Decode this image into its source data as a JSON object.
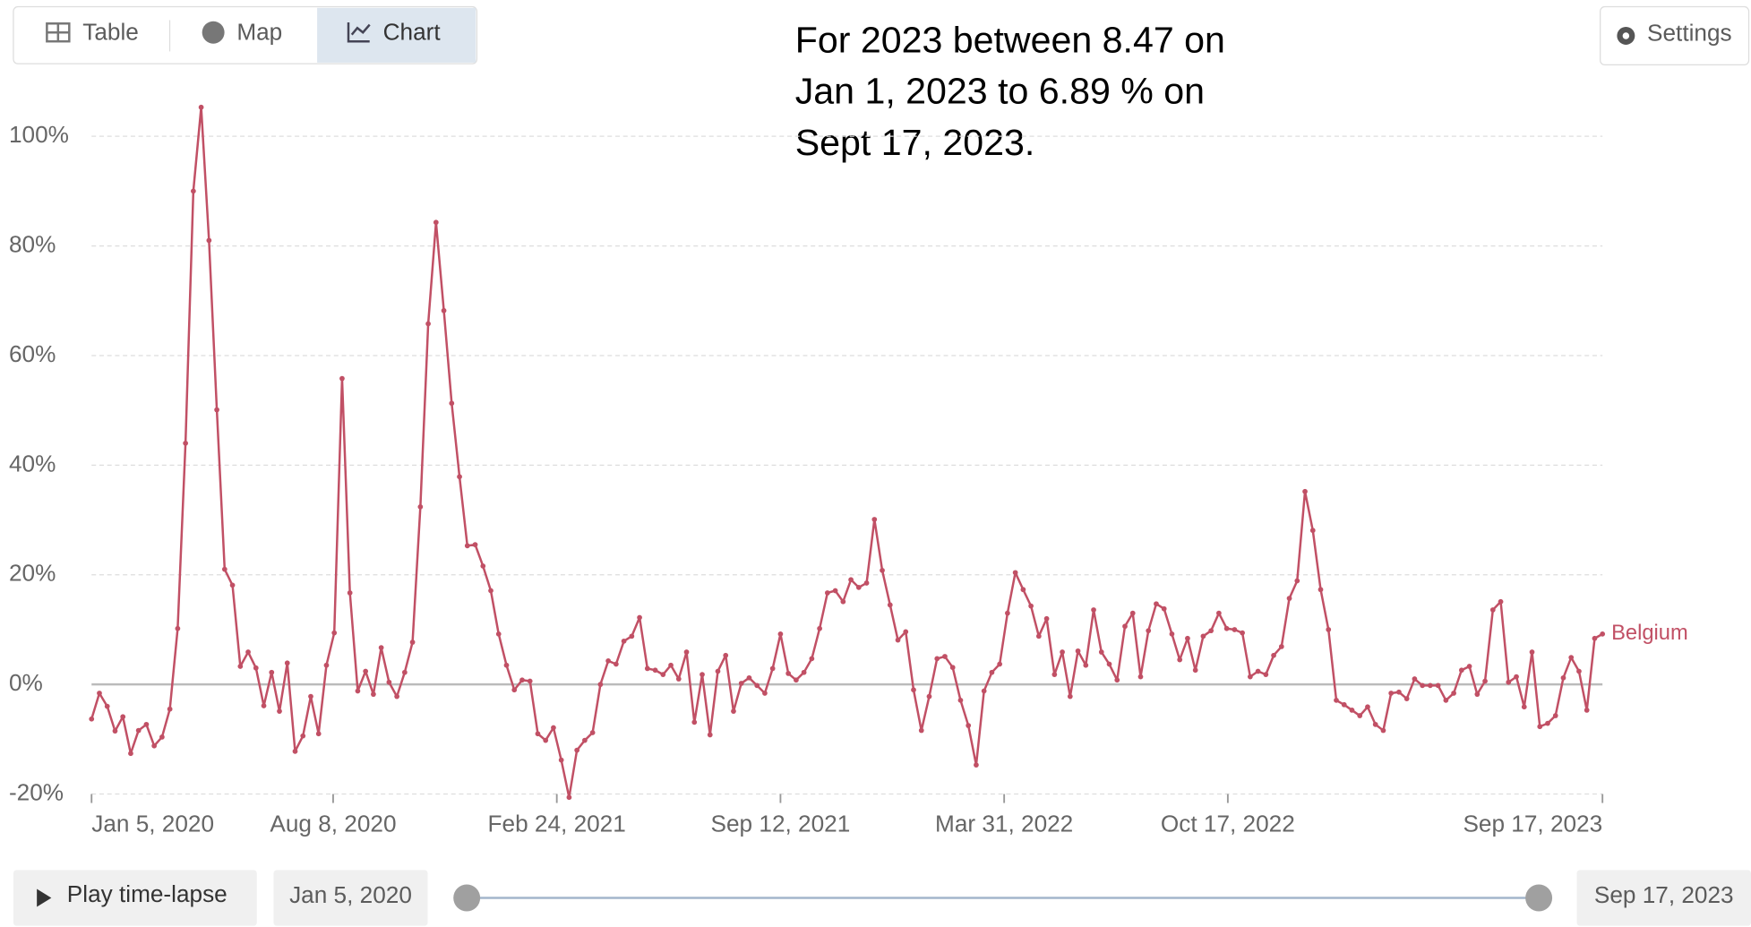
{
  "tabs": [
    "Table",
    "Map",
    "Chart"
  ],
  "active_tab": "Chart",
  "settings": "Settings",
  "annotation": [
    "For 2023 between 8.47 on",
    "Jan 1, 2023 to 6.89 % on",
    "Sept 17, 2023."
  ],
  "timeline": {
    "play": "Play time-lapse",
    "start": "Jan 5, 2020",
    "end": "Sep 17, 2023"
  },
  "chart_data": {
    "type": "line",
    "x": [
      "2020-01-05",
      "2020-01-12",
      "2020-01-19",
      "2020-01-26",
      "2020-02-02",
      "2020-02-09",
      "2020-02-16",
      "2020-02-23",
      "2020-03-01",
      "2020-03-08",
      "2020-03-15",
      "2020-03-22",
      "2020-03-29",
      "2020-04-05",
      "2020-04-12",
      "2020-04-19",
      "2020-04-26",
      "2020-05-03",
      "2020-05-10",
      "2020-05-17",
      "2020-05-24",
      "2020-05-31",
      "2020-06-07",
      "2020-06-14",
      "2020-06-21",
      "2020-06-28",
      "2020-07-05",
      "2020-07-12",
      "2020-07-19",
      "2020-07-26",
      "2020-08-02",
      "2020-08-09",
      "2020-08-16",
      "2020-08-23",
      "2020-08-30",
      "2020-09-06",
      "2020-09-13",
      "2020-09-20",
      "2020-09-27",
      "2020-10-04",
      "2020-10-11",
      "2020-10-18",
      "2020-10-25",
      "2020-11-01",
      "2020-11-08",
      "2020-11-15",
      "2020-11-22",
      "2020-11-29",
      "2020-12-06",
      "2020-12-13",
      "2020-12-20",
      "2020-12-27",
      "2021-01-03",
      "2021-01-10",
      "2021-01-17",
      "2021-01-24",
      "2021-01-31",
      "2021-02-07",
      "2021-02-14",
      "2021-02-21",
      "2021-02-28",
      "2021-03-07",
      "2021-03-14",
      "2021-03-21",
      "2021-03-28",
      "2021-04-04",
      "2021-04-11",
      "2021-04-18",
      "2021-04-25",
      "2021-05-02",
      "2021-05-09",
      "2021-05-16",
      "2021-05-23",
      "2021-05-30",
      "2021-06-06",
      "2021-06-13",
      "2021-06-20",
      "2021-06-27",
      "2021-07-04",
      "2021-07-11",
      "2021-07-18",
      "2021-07-25",
      "2021-08-01",
      "2021-08-08",
      "2021-08-15",
      "2021-08-22",
      "2021-08-29",
      "2021-09-05",
      "2021-09-12",
      "2021-09-19",
      "2021-09-26",
      "2021-10-03",
      "2021-10-10",
      "2021-10-17",
      "2021-10-24",
      "2021-10-31",
      "2021-11-07",
      "2021-11-14",
      "2021-11-21",
      "2021-11-28",
      "2021-12-05",
      "2021-12-12",
      "2021-12-19",
      "2021-12-26",
      "2022-01-02",
      "2022-01-09",
      "2022-01-16",
      "2022-01-23",
      "2022-01-30",
      "2022-02-06",
      "2022-02-13",
      "2022-02-20",
      "2022-02-27",
      "2022-03-06",
      "2022-03-13",
      "2022-03-20",
      "2022-03-27",
      "2022-04-03",
      "2022-04-10",
      "2022-04-17",
      "2022-04-24",
      "2022-05-01",
      "2022-05-08",
      "2022-05-15",
      "2022-05-22",
      "2022-05-29",
      "2022-06-05",
      "2022-06-12",
      "2022-06-19",
      "2022-06-26",
      "2022-07-03",
      "2022-07-10",
      "2022-07-17",
      "2022-07-24",
      "2022-07-31",
      "2022-08-07",
      "2022-08-14",
      "2022-08-21",
      "2022-08-28",
      "2022-09-04",
      "2022-09-11",
      "2022-09-18",
      "2022-09-25",
      "2022-10-02",
      "2022-10-09",
      "2022-10-16",
      "2022-10-23",
      "2022-10-30",
      "2022-11-06",
      "2022-11-13",
      "2022-11-20",
      "2022-11-27",
      "2022-12-04",
      "2022-12-11",
      "2022-12-18",
      "2022-12-25",
      "2023-01-01",
      "2023-01-08",
      "2023-01-15",
      "2023-01-22",
      "2023-01-29",
      "2023-02-05",
      "2023-02-12",
      "2023-02-19",
      "2023-02-26",
      "2023-03-05",
      "2023-03-12",
      "2023-03-19",
      "2023-03-26",
      "2023-04-02",
      "2023-04-09",
      "2023-04-16",
      "2023-04-23",
      "2023-04-30",
      "2023-05-07",
      "2023-05-14",
      "2023-05-21",
      "2023-05-28",
      "2023-06-04",
      "2023-06-11",
      "2023-06-18",
      "2023-06-25",
      "2023-07-02",
      "2023-07-09",
      "2023-07-16",
      "2023-07-23",
      "2023-07-30",
      "2023-08-06",
      "2023-08-13",
      "2023-08-20",
      "2023-08-27",
      "2023-09-03",
      "2023-09-10",
      "2023-09-17"
    ],
    "series": [
      {
        "name": "Belgium",
        "color": "#c15065",
        "values": [
          -6.3,
          -1.6,
          -4,
          -8.5,
          -5.9,
          -12.6,
          -8.4,
          -7.3,
          -11.2,
          -9.6,
          -4.5,
          10.2,
          44,
          90,
          105.3,
          81,
          50.1,
          21,
          18.1,
          3.3,
          5.9,
          3,
          -3.9,
          2.2,
          -4.9,
          3.9,
          -12.2,
          -9.4,
          -2.2,
          -9,
          3.5,
          9.4,
          55.8,
          16.7,
          -1.2,
          2.4,
          -1.8,
          6.7,
          0.4,
          -2.2,
          2.2,
          7.7,
          32.4,
          65.8,
          84.3,
          68.2,
          51.3,
          37.9,
          25.3,
          25.5,
          21.6,
          17.1,
          9.2,
          3.5,
          -1,
          0.8,
          0.6,
          -9,
          -10.2,
          -7.9,
          -13.8,
          -20.6,
          -12,
          -10.2,
          -8.8,
          0,
          4.3,
          3.7,
          7.9,
          8.8,
          12.2,
          2.9,
          2.6,
          1.8,
          3.5,
          1,
          5.9,
          -6.9,
          1.8,
          -9.2,
          2.4,
          5.3,
          -4.9,
          0.2,
          1.2,
          -0.2,
          -1.6,
          2.9,
          9.2,
          2,
          0.8,
          2.2,
          4.7,
          10.2,
          16.7,
          17.1,
          15.1,
          19.1,
          17.7,
          18.5,
          30.1,
          20.8,
          14.5,
          8.1,
          9.6,
          -1,
          -8.4,
          -2.2,
          4.7,
          5.1,
          3.1,
          -2.9,
          -7.5,
          -14.7,
          -1.2,
          2.2,
          3.7,
          13,
          20.4,
          17.3,
          14.3,
          8.8,
          12,
          1.8,
          5.9,
          -2.2,
          6.1,
          3.5,
          13.6,
          5.9,
          3.7,
          0.8,
          10.6,
          13,
          1.4,
          9.8,
          14.7,
          13.8,
          9.2,
          4.5,
          8.4,
          2.6,
          8.8,
          9.8,
          13,
          10.2,
          10,
          9.4,
          1.4,
          2.4,
          1.8,
          5.3,
          6.9,
          15.7,
          18.9,
          35.2,
          28.1,
          17.3,
          10,
          -2.9,
          -3.7,
          -4.7,
          -5.7,
          -4.1,
          -7.3,
          -8.4,
          -1.6,
          -1.4,
          -2.6,
          1,
          -0.2,
          -0.2,
          -0.2,
          -2.9,
          -1.6,
          2.6,
          3.3,
          -1.8,
          0.6,
          13.6,
          15.1,
          0.4,
          1.4,
          -4.1,
          5.9,
          -7.7,
          -7.1,
          -5.7,
          1.2,
          4.9,
          2.4,
          -4.7,
          8.4,
          9.2
        ]
      }
    ],
    "xlim": [
      "2020-01-05",
      "2023-09-17"
    ],
    "xticks": [
      {
        "value": "2020-01-05",
        "label": "Jan 5, 2020"
      },
      {
        "value": "2020-08-08",
        "label": "Aug 8, 2020"
      },
      {
        "value": "2021-02-24",
        "label": "Feb 24, 2021"
      },
      {
        "value": "2021-09-12",
        "label": "Sep 12, 2021"
      },
      {
        "value": "2022-03-31",
        "label": "Mar 31, 2022"
      },
      {
        "value": "2022-10-17",
        "label": "Oct 17, 2022"
      },
      {
        "value": "2023-09-17",
        "label": "Sep 17, 2023"
      }
    ],
    "ylim": [
      -20,
      100
    ],
    "yticks": [
      {
        "value": -20,
        "label": "-20%"
      },
      {
        "value": 0,
        "label": "0%"
      },
      {
        "value": 20,
        "label": "20%"
      },
      {
        "value": 40,
        "label": "40%"
      },
      {
        "value": 60,
        "label": "60%"
      },
      {
        "value": 80,
        "label": "80%"
      },
      {
        "value": 100,
        "label": "100%"
      }
    ],
    "grid": true
  }
}
